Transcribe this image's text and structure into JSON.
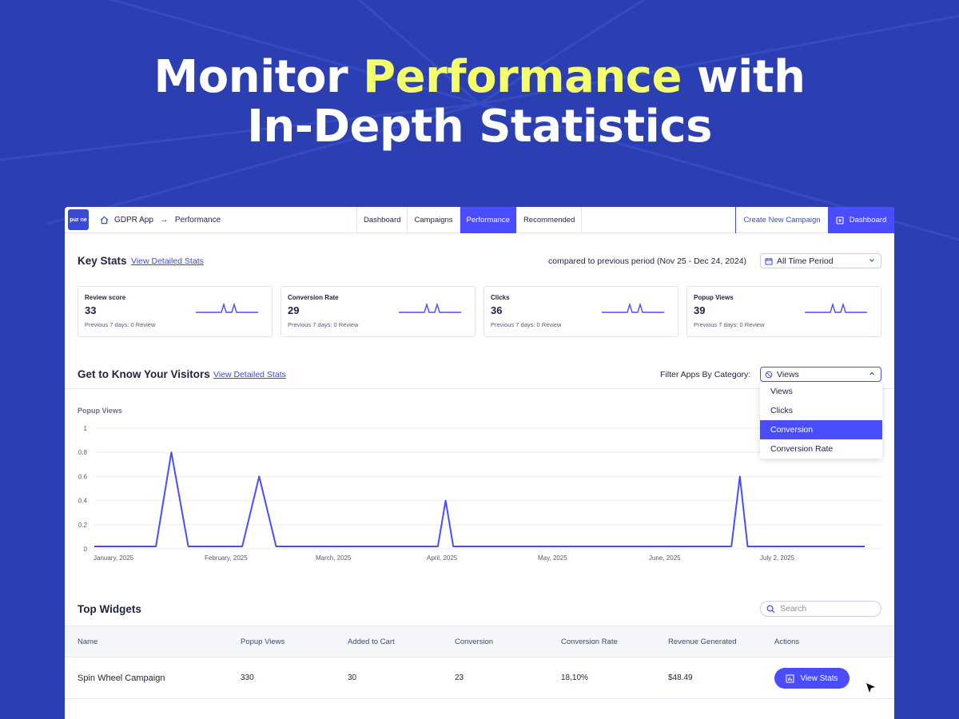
{
  "headline": {
    "part1": "Monitor ",
    "highlight": "Performance",
    "part2": " with",
    "line2": "In-Depth Statistics"
  },
  "colors": {
    "background": "#2b3fb3",
    "accent": "#4a4dff",
    "highlight": "#f3ff6b"
  },
  "topbar": {
    "logo_text": "pur ne",
    "breadcrumb": {
      "app": "GDPR App",
      "page": "Performance"
    },
    "tabs": [
      "Dashboard",
      "Campaigns",
      "Performance",
      "Recommended"
    ],
    "active_tab": "Performance",
    "create_label": "Create New Campaign",
    "dashboard_label": "Dashboard"
  },
  "key_stats": {
    "title": "Key Stats",
    "link": "View Detailed Stats",
    "compare": "compared to previous period (Nov 25 - Dec 24, 2024)",
    "period": "All Time Period",
    "cards": [
      {
        "label": "Review score",
        "value": "33",
        "sub": "Previous 7 days: 0 Review"
      },
      {
        "label": "Conversion Rate",
        "value": "29",
        "sub": "Previous 7 days: 0 Review"
      },
      {
        "label": "Clicks",
        "value": "36",
        "sub": "Previous 7 days: 0 Review"
      },
      {
        "label": "Popup Views",
        "value": "39",
        "sub": "Previous 7 days: 0 Review"
      }
    ]
  },
  "visitors": {
    "title": "Get to Know Your Visitors",
    "link": "View Detailed Stats",
    "filter_label": "Filter Apps By Category:",
    "filter_value": "Views",
    "options": [
      "Views",
      "Clicks",
      "Conversion",
      "Conversion Rate"
    ],
    "highlighted_option": "Conversion"
  },
  "chart_data": {
    "type": "line",
    "title": "Popup Views",
    "ylim": [
      0,
      1
    ],
    "yticks": [
      "0",
      "0.2",
      "0.4",
      "0.6",
      "0.8",
      "1"
    ],
    "xticks": [
      "January, 2025",
      "February, 2025",
      "March, 2025",
      "April, 2025",
      "May, 2025",
      "June, 2025",
      "July 2, 2025"
    ],
    "series": [
      {
        "points": [
          [
            0,
            0.02
          ],
          [
            0.08,
            0.02
          ],
          [
            0.1,
            0.8
          ],
          [
            0.122,
            0.02
          ],
          [
            0.192,
            0.02
          ],
          [
            0.214,
            0.6
          ],
          [
            0.236,
            0.02
          ],
          [
            0.446,
            0.02
          ],
          [
            0.456,
            0.4
          ],
          [
            0.466,
            0.02
          ],
          [
            0.827,
            0.02
          ],
          [
            0.838,
            0.6
          ],
          [
            0.848,
            0.02
          ],
          [
            1,
            0.02
          ]
        ]
      }
    ]
  },
  "widgets": {
    "title": "Top Widgets",
    "search_placeholder": "Search",
    "columns": [
      "Name",
      "Popup Views",
      "Added to Cart",
      "Conversion",
      "Conversion Rate",
      "Revenue Generated",
      "Actions"
    ],
    "rows": [
      {
        "name": "Spin Wheel Campaign",
        "views": "330",
        "cart": "30",
        "conversion": "23",
        "rate": "18,10%",
        "revenue": "$48.49",
        "action": "View Stats"
      }
    ]
  }
}
